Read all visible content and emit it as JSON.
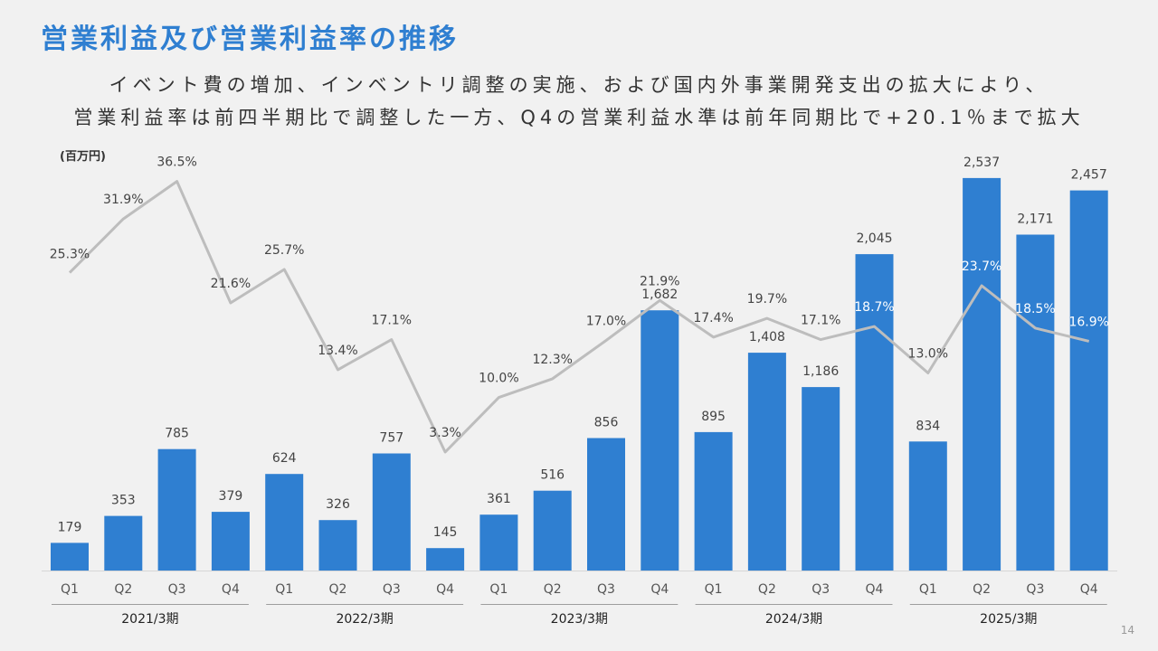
{
  "header": {
    "title": "営業利益及び営業利益率の推移",
    "subtitle_line1": "イベント費の増加、インベントリ調整の実施、および国内外事業開発支出の拡大により、",
    "subtitle_line2": "営業利益率は前四半期比で調整した一方、Q4の営業利益水準は前年同期比で+20.1％まで拡大"
  },
  "unit_label": "(百万円)",
  "page_number": "14",
  "colors": {
    "bar": "#2f7fd1",
    "line": "#bdbdbd",
    "title": "#2f7fd1"
  },
  "chart_data": {
    "type": "bar",
    "categories": [
      "Q1",
      "Q2",
      "Q3",
      "Q4",
      "Q1",
      "Q2",
      "Q3",
      "Q4",
      "Q1",
      "Q2",
      "Q3",
      "Q4",
      "Q1",
      "Q2",
      "Q3",
      "Q4",
      "Q1",
      "Q2",
      "Q3",
      "Q4"
    ],
    "groups": [
      "2021/3期",
      "2022/3期",
      "2023/3期",
      "2024/3期",
      "2025/3期"
    ],
    "series": [
      {
        "type": "bar",
        "values": [
          179,
          353,
          785,
          379,
          624,
          326,
          757,
          145,
          361,
          516,
          856,
          1682,
          895,
          1408,
          1186,
          2045,
          834,
          2537,
          2171,
          2457
        ],
        "labels": [
          "179",
          "353",
          "785",
          "379",
          "624",
          "326",
          "757",
          "145",
          "361",
          "516",
          "856",
          "1,682",
          "895",
          "1,408",
          "1,186",
          "2,045",
          "834",
          "2,537",
          "2,171",
          "2,457"
        ]
      },
      {
        "type": "line",
        "values": [
          25.3,
          31.9,
          36.5,
          21.6,
          25.7,
          13.4,
          17.1,
          3.3,
          10.0,
          12.3,
          17.0,
          21.9,
          17.4,
          19.7,
          17.1,
          18.7,
          13.0,
          23.7,
          18.5,
          16.9
        ],
        "labels": [
          "25.3%",
          "31.9%",
          "36.5%",
          "21.6%",
          "25.7%",
          "13.4%",
          "17.1%",
          "3.3%",
          "10.0%",
          "12.3%",
          "17.0%",
          "21.9%",
          "17.4%",
          "19.7%",
          "17.1%",
          "18.7%",
          "13.0%",
          "23.7%",
          "18.5%",
          "16.9%"
        ]
      }
    ],
    "bar_ylim": [
      0,
      2700
    ],
    "line_ylim": [
      -10,
      40
    ],
    "grid": false,
    "legend": "none"
  }
}
